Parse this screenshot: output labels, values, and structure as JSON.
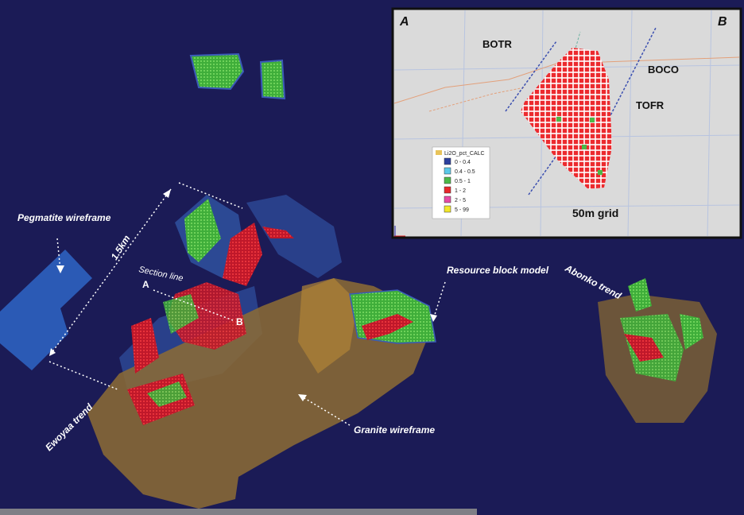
{
  "annotations": {
    "pegmatite": "Pegmatite wireframe",
    "distance": "1.5km",
    "section_line": "Section line",
    "section_a": "A",
    "section_b": "B",
    "resource": "Resource block model",
    "abonko": "Abonko trend",
    "ewoyaa": "Ewoyaa trend",
    "granite": "Granite wireframe"
  },
  "inset": {
    "corner_left": "A",
    "corner_right": "B",
    "labels": [
      "BOTR",
      "BOCO",
      "TOFR"
    ],
    "grid": "50m grid",
    "legend": {
      "title": "Li2O_pct_CALC",
      "items": [
        {
          "label": "0 - 0.4",
          "color": "#2c3f9e"
        },
        {
          "label": "0.4 - 0.5",
          "color": "#5bc8e8"
        },
        {
          "label": "0.5 - 1",
          "color": "#4cb848"
        },
        {
          "label": "1 - 2",
          "color": "#e8262b"
        },
        {
          "label": "2 - 5",
          "color": "#e64aa5"
        },
        {
          "label": "5 - 99",
          "color": "#f2e629"
        }
      ]
    }
  }
}
